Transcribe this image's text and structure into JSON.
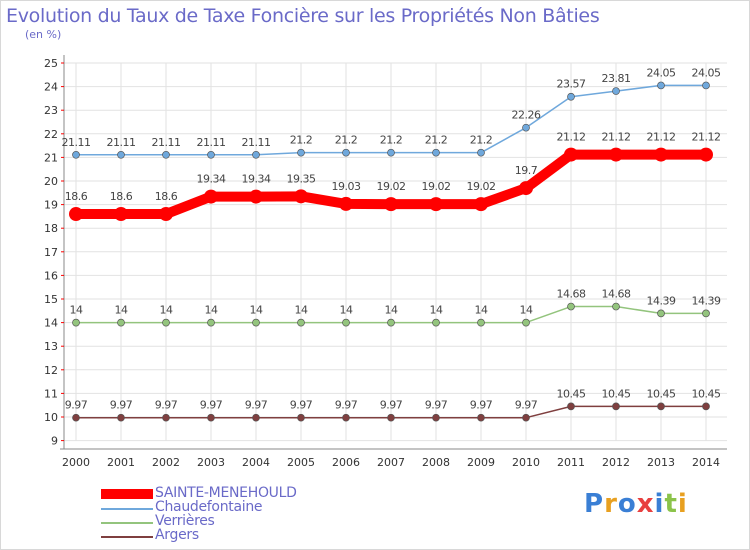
{
  "chart_data": {
    "type": "line",
    "title": "Evolution du Taux de Taxe Foncière sur les Propriétés Non Bâties",
    "ylabel": "(en %)",
    "xlabel": "",
    "ylim": [
      9,
      25
    ],
    "yticks": [
      "9",
      "10",
      "11",
      "12",
      "13",
      "14",
      "15",
      "16",
      "17",
      "18",
      "19",
      "20",
      "21",
      "22",
      "23",
      "24",
      "25"
    ],
    "categories": [
      "2000",
      "2001",
      "2002",
      "2003",
      "2004",
      "2005",
      "2006",
      "2007",
      "2008",
      "2009",
      "2010",
      "2011",
      "2012",
      "2013",
      "2014"
    ],
    "series": [
      {
        "name": "SAINTE-MENEHOULD",
        "color": "#ff0000",
        "values": [
          18.6,
          18.6,
          18.6,
          19.34,
          19.34,
          19.35,
          19.03,
          19.02,
          19.02,
          19.02,
          19.7,
          21.12,
          21.12,
          21.12,
          21.12
        ],
        "labels": [
          "18.6",
          "18.6",
          "18.6",
          "19.34",
          "19.34",
          "19.35",
          "19.03",
          "19.02",
          "19.02",
          "19.02",
          "19.7",
          "21.12",
          "21.12",
          "21.12",
          "21.12"
        ]
      },
      {
        "name": "Chaudefontaine",
        "color": "#6fa8dc",
        "values": [
          21.11,
          21.11,
          21.11,
          21.11,
          21.11,
          21.2,
          21.2,
          21.2,
          21.2,
          21.2,
          22.26,
          23.57,
          23.81,
          24.05,
          24.05
        ],
        "labels": [
          "21.11",
          "21.11",
          "21.11",
          "21.11",
          "21.11",
          "21.2",
          "21.2",
          "21.2",
          "21.2",
          "21.2",
          "22.26",
          "23.57",
          "23.81",
          "24.05",
          "24.05"
        ]
      },
      {
        "name": "Verrières",
        "color": "#93c47d",
        "values": [
          14,
          14,
          14,
          14,
          14,
          14,
          14,
          14,
          14,
          14,
          14,
          14.68,
          14.68,
          14.39,
          14.39
        ],
        "labels": [
          "14",
          "14",
          "14",
          "14",
          "14",
          "14",
          "14",
          "14",
          "14",
          "14",
          "14",
          "14.68",
          "14.68",
          "14.39",
          "14.39"
        ]
      },
      {
        "name": "Argers",
        "color": "#7f3f3f",
        "values": [
          9.97,
          9.97,
          9.97,
          9.97,
          9.97,
          9.97,
          9.97,
          9.97,
          9.97,
          9.97,
          9.97,
          10.45,
          10.45,
          10.45,
          10.45
        ],
        "labels": [
          "9.97",
          "9.97",
          "9.97",
          "9.97",
          "9.97",
          "9.97",
          "9.97",
          "9.97",
          "9.97",
          "9.97",
          "9.97",
          "10.45",
          "10.45",
          "10.45",
          "10.45"
        ]
      }
    ],
    "legend": [
      {
        "label": "SAINTE-MENEHOULD",
        "color": "#ff0000",
        "text_color": "#6a6ac8"
      },
      {
        "label": "Chaudefontaine",
        "color": "#6fa8dc",
        "text_color": "#6a6ac8"
      },
      {
        "label": "Verrières",
        "color": "#93c47d",
        "text_color": "#6a6ac8"
      },
      {
        "label": "Argers",
        "color": "#7f3f3f",
        "text_color": "#6a6ac8"
      }
    ]
  },
  "logo": {
    "text": "Proxiti",
    "letters": [
      {
        "ch": "P",
        "color": "#3a7fd5"
      },
      {
        "ch": "r",
        "color": "#e8a020"
      },
      {
        "ch": "o",
        "color": "#3a7fd5"
      },
      {
        "ch": "x",
        "color": "#e84040"
      },
      {
        "ch": "i",
        "color": "#3a7fd5"
      },
      {
        "ch": "t",
        "color": "#8bc34a"
      },
      {
        "ch": "i",
        "color": "#e8a020"
      }
    ]
  }
}
